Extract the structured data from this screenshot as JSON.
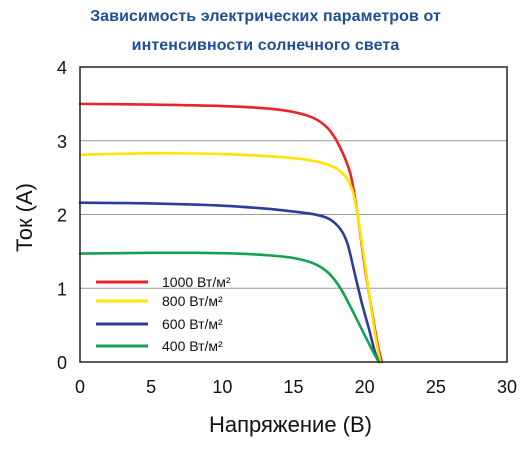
{
  "chart_data": {
    "type": "line",
    "title_lines": [
      "Зависимость электрических параметров от",
      "интенсивности солнечного света"
    ],
    "xlabel": "Напряжение (В)",
    "ylabel": "Ток (А)",
    "xlim": [
      0,
      30
    ],
    "ylim": [
      0,
      4
    ],
    "xticks": [
      "0",
      "5",
      "10",
      "15",
      "20",
      "25",
      "30"
    ],
    "yticks": [
      "0",
      "1",
      "2",
      "3",
      "4"
    ],
    "grid": "horizontal",
    "legend_placement": "bottom-left",
    "series": [
      {
        "name": "1000 Вт/м²",
        "color": "#e8232a",
        "x": [
          0,
          5,
          10,
          13,
          15,
          16.5,
          17.5,
          18.3,
          19,
          19.5,
          20,
          20.5,
          20.9,
          21.2
        ],
        "y": [
          3.5,
          3.49,
          3.47,
          3.44,
          3.39,
          3.3,
          3.15,
          2.9,
          2.55,
          2.0,
          1.3,
          0.7,
          0.25,
          0.0
        ]
      },
      {
        "name": "800 Вт/м²",
        "color": "#ffe400",
        "x": [
          0,
          5,
          10,
          14,
          16,
          17.5,
          18.5,
          19.1,
          19.5,
          20,
          20.4,
          20.8,
          21.1
        ],
        "y": [
          2.81,
          2.83,
          2.82,
          2.78,
          2.74,
          2.67,
          2.55,
          2.35,
          2.0,
          1.35,
          0.8,
          0.3,
          0.0
        ]
      },
      {
        "name": "600 Вт/м²",
        "color": "#2b3c9b",
        "x": [
          0,
          5,
          10,
          13,
          15,
          16.5,
          17.5,
          18.3,
          18.8,
          19.3,
          19.8,
          20.3,
          20.7,
          21.0
        ],
        "y": [
          2.16,
          2.15,
          2.12,
          2.08,
          2.04,
          2.0,
          1.94,
          1.8,
          1.6,
          1.2,
          0.8,
          0.45,
          0.15,
          0.0
        ]
      },
      {
        "name": "400 Вт/м²",
        "color": "#13a154",
        "x": [
          0,
          5,
          8,
          11,
          13,
          15,
          16.5,
          17.5,
          18.3,
          19,
          19.7,
          20.3,
          20.7,
          21.0
        ],
        "y": [
          1.47,
          1.48,
          1.48,
          1.47,
          1.45,
          1.41,
          1.33,
          1.2,
          1.0,
          0.75,
          0.48,
          0.25,
          0.1,
          0.0
        ]
      }
    ]
  }
}
